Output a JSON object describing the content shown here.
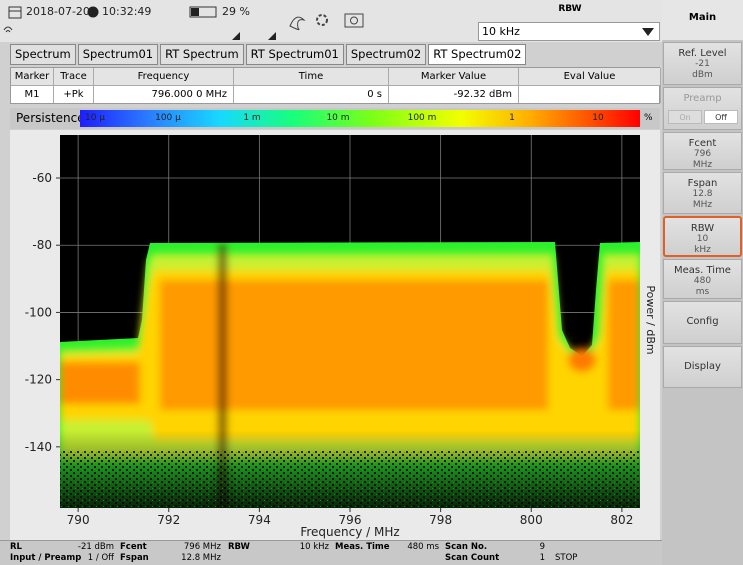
{
  "header": {
    "date": "2018-07-20",
    "time": "10:32:49",
    "battery": "29 %"
  },
  "rbw_box": {
    "label": "RBW",
    "value": "10 kHz"
  },
  "tabs": [
    "Spectrum",
    "Spectrum01",
    "RT Spectrum",
    "RT Spectrum01",
    "Spectrum02",
    "RT Spectrum02"
  ],
  "marker_table": {
    "headers": [
      "Marker",
      "Trace",
      "Frequency",
      "Time",
      "Marker Value",
      "Eval Value"
    ],
    "rows": [
      [
        "M1",
        "+Pk",
        "796.000 0 MHz",
        "0 s",
        "-92.32 dBm"
      ]
    ]
  },
  "persistence": {
    "label": "Persistence",
    "scale_labels": [
      "10 μ",
      "100 μ",
      "1 m",
      "10 m",
      "100 m",
      "1",
      "10"
    ],
    "unit": "%"
  },
  "chart_data": {
    "type": "persistence",
    "xlabel": "Frequency / MHz",
    "ylabel": "Power / dBm",
    "xlim": [
      789.6,
      802.4
    ],
    "ylim": [
      -158.2,
      -47.2
    ],
    "xticks": [
      790,
      792,
      794,
      796,
      798,
      800,
      802
    ],
    "yticks": [
      -140,
      -120,
      -100,
      -80,
      -60
    ],
    "grid": true
  },
  "side_panel": {
    "title": "Main",
    "buttons": [
      {
        "label": "Ref. Level",
        "value": -21,
        "unit": "dBm"
      },
      {
        "label": "Preamp",
        "options": [
          "On",
          "Off"
        ]
      },
      {
        "label": "Fcent",
        "value": 796,
        "unit": "MHz"
      },
      {
        "label": "Fspan",
        "value": 12.8,
        "unit": "MHz"
      },
      {
        "label": "RBW",
        "value": 10,
        "unit": "kHz"
      },
      {
        "label": "Meas. Time",
        "value": 480,
        "unit": "ms"
      },
      {
        "label": "Config"
      },
      {
        "label": "Display"
      }
    ]
  },
  "status_bar": {
    "columns": [
      {
        "top": [
          "RL",
          "-21 dBm"
        ],
        "bottom": [
          "Input / Preamp",
          "1 / Off"
        ]
      },
      {
        "top": [
          "Fcent",
          "796 MHz"
        ],
        "bottom": [
          "Fspan",
          "12.8 MHz"
        ]
      },
      {
        "top": [
          "RBW",
          "10 kHz"
        ]
      },
      {
        "top": [
          "Meas. Time",
          "480 ms"
        ]
      },
      {
        "top": [
          "Scan No.",
          "9"
        ],
        "bottom": [
          "Scan Count",
          "1"
        ]
      },
      {
        "bottom": [
          "STOP"
        ]
      }
    ]
  }
}
